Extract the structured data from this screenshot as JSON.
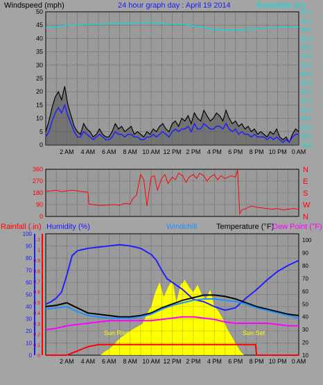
{
  "colors": {
    "background": "#a4a4a4",
    "plot_bg": "#9a9a9a",
    "grid": "#111111",
    "axis_red": "#ff0000",
    "axis_blue": "#1a1aff",
    "cyan": "#00e0e0",
    "black": "#000000",
    "windchill": "#1e90ff",
    "dewpoint": "#ff00ff",
    "humidity": "#2020ff",
    "radiation": "#ffff00"
  },
  "chart_data": [
    {
      "type": "line",
      "panel": "wind",
      "title": "24 hour graph day : April 19 2014",
      "left_axis_title": "Windspeed (mph)",
      "right_axis_title": "Barometer (in)",
      "x_ticks": [
        "2 AM",
        "4 AM",
        "6 AM",
        "8 AM",
        "10 AM",
        "12 PM",
        "2 PM",
        "4 PM",
        "6 PM",
        "8 PM",
        "10 PM",
        "0 AM"
      ],
      "x_range": [
        0,
        24
      ],
      "ylim_left": [
        0,
        50
      ],
      "y_ticks_left": [
        "0",
        "5",
        "10",
        "15",
        "20",
        "25",
        "30",
        "35",
        "40",
        "45",
        "50"
      ],
      "ylim_right": [
        28.8,
        30.3
      ],
      "y_ticks_right": [
        "28.8",
        "28.9",
        "29.0",
        "29.1",
        "29.2",
        "29.3",
        "29.4",
        "29.5",
        "29.6",
        "29.7",
        "29.8",
        "29.9",
        "30.0",
        "30.1",
        "30.2",
        "30.3"
      ],
      "series": [
        {
          "role": "gust",
          "color": "#000000",
          "x": [
            0,
            0.3,
            0.6,
            0.9,
            1.2,
            1.5,
            1.8,
            2.1,
            2.4,
            2.7,
            3.0,
            3.3,
            3.6,
            3.9,
            4.2,
            4.5,
            4.8,
            5.1,
            5.4,
            5.7,
            6.0,
            6.3,
            6.6,
            6.9,
            7.2,
            7.5,
            7.8,
            8.1,
            8.4,
            8.7,
            9.0,
            9.3,
            9.6,
            9.9,
            10.2,
            10.5,
            10.8,
            11.1,
            11.4,
            11.7,
            12.0,
            12.3,
            12.6,
            12.9,
            13.2,
            13.5,
            13.8,
            14.1,
            14.4,
            14.7,
            15.0,
            15.3,
            15.6,
            15.9,
            16.2,
            16.5,
            16.8,
            17.1,
            17.4,
            17.7,
            18.0,
            18.3,
            18.6,
            18.9,
            19.2,
            19.5,
            19.8,
            20.1,
            20.4,
            20.7,
            21.0,
            21.3,
            21.6,
            21.9,
            22.2,
            22.5,
            22.8,
            23.1,
            23.4,
            23.7,
            24.0
          ],
          "values": [
            5,
            9,
            14,
            18,
            20,
            17,
            22,
            15,
            11,
            7,
            5,
            4,
            8,
            6,
            5,
            3,
            4,
            6,
            4,
            3,
            3,
            5,
            8,
            6,
            7,
            5,
            6,
            7,
            4,
            5,
            4,
            3,
            5,
            4,
            6,
            5,
            7,
            8,
            6,
            5,
            8,
            9,
            7,
            10,
            9,
            11,
            8,
            12,
            10,
            9,
            13,
            11,
            9,
            10,
            12,
            11,
            9,
            13,
            10,
            8,
            9,
            7,
            8,
            6,
            7,
            5,
            6,
            4,
            5,
            4,
            3,
            5,
            4,
            6,
            3,
            2,
            3,
            1,
            4,
            6,
            5
          ]
        },
        {
          "role": "speed",
          "color": "#2020ff",
          "x": [
            0,
            0.3,
            0.6,
            0.9,
            1.2,
            1.5,
            1.8,
            2.1,
            2.4,
            2.7,
            3.0,
            3.3,
            3.6,
            3.9,
            4.2,
            4.5,
            4.8,
            5.1,
            5.4,
            5.7,
            6.0,
            6.3,
            6.6,
            6.9,
            7.2,
            7.5,
            7.8,
            8.1,
            8.4,
            8.7,
            9.0,
            9.3,
            9.6,
            9.9,
            10.2,
            10.5,
            10.8,
            11.1,
            11.4,
            11.7,
            12.0,
            12.3,
            12.6,
            12.9,
            13.2,
            13.5,
            13.8,
            14.1,
            14.4,
            14.7,
            15.0,
            15.3,
            15.6,
            15.9,
            16.2,
            16.5,
            16.8,
            17.1,
            17.4,
            17.7,
            18.0,
            18.3,
            18.6,
            18.9,
            19.2,
            19.5,
            19.8,
            20.1,
            20.4,
            20.7,
            21.0,
            21.3,
            21.6,
            21.9,
            22.2,
            22.5,
            22.8,
            23.1,
            23.4,
            23.7,
            24.0
          ],
          "values": [
            3,
            5,
            9,
            12,
            14,
            12,
            15,
            11,
            8,
            5,
            3,
            3,
            5,
            4,
            3,
            2,
            3,
            4,
            3,
            2,
            2,
            3,
            5,
            4,
            4,
            3,
            4,
            4,
            3,
            3,
            2,
            2,
            3,
            3,
            4,
            3,
            4,
            5,
            4,
            3,
            5,
            6,
            5,
            6,
            6,
            7,
            5,
            8,
            6,
            6,
            8,
            7,
            6,
            6,
            7,
            7,
            6,
            8,
            6,
            5,
            6,
            4,
            5,
            4,
            4,
            3,
            4,
            3,
            3,
            3,
            2,
            3,
            2,
            3,
            2,
            1,
            2,
            1,
            3,
            4,
            4
          ]
        },
        {
          "role": "barometer",
          "color": "#00e0e0",
          "x": [
            0,
            1,
            2,
            3,
            4,
            5,
            6,
            7,
            8,
            9,
            10,
            11,
            12,
            13,
            14,
            15,
            16,
            17,
            18,
            19,
            20,
            21,
            22,
            23,
            24
          ],
          "values": [
            30.12,
            30.13,
            30.15,
            30.15,
            30.16,
            30.16,
            30.17,
            30.17,
            30.17,
            30.18,
            30.18,
            30.17,
            30.16,
            30.16,
            30.14,
            30.12,
            30.1,
            30.09,
            30.1,
            30.1,
            30.11,
            30.12,
            30.12,
            30.13,
            30.13
          ]
        }
      ]
    },
    {
      "type": "line",
      "panel": "direction",
      "x_range": [
        0,
        24
      ],
      "ylim": [
        0,
        360
      ],
      "y_ticks": [
        "0",
        "90",
        "180",
        "270",
        "360"
      ],
      "right_labels": [
        "N",
        "W",
        "S",
        "E",
        "N"
      ],
      "series": [
        {
          "role": "wind_direction",
          "color": "#ff0000",
          "x": [
            0,
            0.5,
            1,
            1.5,
            2,
            2.5,
            3,
            3.5,
            4,
            4.1,
            4.5,
            5,
            5.5,
            6,
            6.5,
            7,
            7.5,
            8,
            8.3,
            8.6,
            9,
            9.3,
            9.6,
            10,
            10.3,
            10.6,
            11,
            11.3,
            11.6,
            12,
            12.3,
            12.6,
            13,
            13.3,
            13.6,
            14,
            14.3,
            14.6,
            15,
            15.3,
            15.6,
            16,
            16.3,
            16.6,
            17,
            17.3,
            17.6,
            18,
            18.2,
            18.4,
            18.6,
            19,
            19.5,
            20,
            20.5,
            21,
            21.5,
            22,
            22.5,
            23,
            23.5,
            24
          ],
          "values": [
            190,
            195,
            200,
            190,
            195,
            200,
            195,
            190,
            185,
            95,
            90,
            85,
            85,
            88,
            90,
            85,
            100,
            95,
            140,
            160,
            320,
            280,
            80,
            300,
            310,
            200,
            290,
            320,
            250,
            300,
            280,
            330,
            310,
            260,
            300,
            320,
            290,
            330,
            310,
            270,
            300,
            320,
            280,
            310,
            290,
            300,
            310,
            300,
            355,
            20,
            50,
            60,
            80,
            70,
            65,
            60,
            55,
            60,
            50,
            55,
            60,
            55
          ]
        }
      ]
    },
    {
      "type": "line",
      "panel": "temperature",
      "legend": [
        "Rainfall (.in)",
        "Humidity (%)",
        "Windchill",
        "Temperature (°F)",
        "Dew Point (°F)"
      ],
      "x_range": [
        0,
        24
      ],
      "humidity_ticks": [
        "0",
        "10",
        "20",
        "30",
        "40",
        "50",
        "60",
        "70",
        "80",
        "90",
        "100"
      ],
      "rain_ticks": [
        "0",
        "0.1",
        "0.2",
        "0.3",
        "0.4",
        "0.5",
        "0.6",
        "0.7",
        "0.8",
        "0.9",
        "1",
        "1.1"
      ],
      "temp_ticks": [
        "10",
        "20",
        "30",
        "40",
        "50",
        "60",
        "70",
        "80",
        "90",
        "100"
      ],
      "ylim_temp": [
        10,
        105
      ],
      "ylim_humidity": [
        0,
        100
      ],
      "ylim_rain": [
        0,
        1.15
      ],
      "annotations": [
        "Sun Rise",
        "Sun Set"
      ],
      "series": [
        {
          "role": "humidity",
          "color": "#2020ff",
          "x": [
            0,
            0.5,
            1,
            1.5,
            2,
            2.5,
            3,
            3.5,
            4,
            5,
            6,
            7,
            8,
            9,
            10,
            10.5,
            11,
            11.5,
            12,
            12.5,
            13,
            13.5,
            14,
            15,
            16,
            17,
            18,
            19,
            20,
            21,
            22,
            23,
            24
          ],
          "values": [
            42,
            44,
            47,
            52,
            66,
            82,
            86,
            87,
            88,
            89,
            90,
            91,
            90,
            88,
            83,
            78,
            70,
            63,
            60,
            57,
            54,
            50,
            46,
            44,
            40,
            37,
            39,
            47,
            54,
            62,
            69,
            74,
            78
          ]
        },
        {
          "role": "temperature",
          "color": "#000000",
          "x": [
            0,
            1,
            2,
            3,
            4,
            5,
            6,
            7,
            8,
            9,
            10,
            11,
            12,
            13,
            14,
            15,
            16,
            17,
            18,
            19,
            20,
            21,
            22,
            23,
            24
          ],
          "values": [
            48,
            49,
            51,
            47,
            43,
            42,
            41,
            40,
            40,
            41,
            43,
            47,
            50,
            53,
            55,
            57,
            57,
            56,
            54,
            51,
            48,
            46,
            44,
            42,
            41
          ]
        },
        {
          "role": "windchill",
          "color": "#1e90ff",
          "x": [
            0,
            1,
            2,
            3,
            4,
            5,
            6,
            7,
            8,
            9,
            10,
            11,
            12,
            13,
            14,
            15,
            16,
            17,
            18,
            19,
            20,
            21,
            22,
            23,
            24
          ],
          "values": [
            46,
            47,
            48,
            44,
            41,
            40,
            39,
            39,
            39,
            40,
            42,
            46,
            49,
            51,
            53,
            54,
            54,
            53,
            52,
            50,
            47,
            45,
            43,
            41,
            39
          ]
        },
        {
          "role": "dewpoint",
          "color": "#ff00ff",
          "x": [
            0,
            1,
            2,
            3,
            4,
            5,
            6,
            7,
            8,
            9,
            10,
            11,
            12,
            13,
            14,
            15,
            16,
            17,
            18,
            19,
            20,
            21,
            22,
            23,
            24
          ],
          "values": [
            30,
            31,
            33,
            34,
            35,
            36,
            37,
            37,
            37,
            37,
            37,
            38,
            39,
            40,
            40,
            39,
            38,
            36,
            35,
            35,
            35,
            35,
            34,
            33,
            33
          ]
        },
        {
          "role": "rainfall",
          "color": "#ff0000",
          "x": [
            0,
            1.5,
            2.0,
            2.5,
            3.0,
            3.5,
            4.0,
            4.5,
            5.0,
            6.0,
            7.0,
            8.0,
            9.0,
            10.0,
            12.0,
            14.0,
            16.0,
            18.0,
            19.9,
            20.0,
            24.0
          ],
          "values": [
            0,
            0,
            0,
            0.02,
            0.04,
            0.06,
            0.08,
            0.09,
            0.1,
            0.1,
            0.1,
            0.1,
            0.1,
            0.1,
            0.1,
            0.1,
            0.1,
            0.1,
            0.1,
            0,
            0
          ]
        },
        {
          "role": "solar_radiation",
          "color": "#ffff00",
          "x": [
            5.2,
            5.6,
            6.0,
            6.4,
            6.8,
            7.2,
            7.6,
            8.0,
            8.4,
            8.8,
            9.2,
            9.6,
            10.0,
            10.4,
            10.8,
            11.2,
            11.6,
            12.0,
            12.4,
            12.8,
            13.2,
            13.6,
            14.0,
            14.4,
            14.8,
            15.2,
            15.6,
            16.0,
            16.4,
            16.8,
            17.2,
            17.6,
            18.0,
            18.4,
            18.8
          ],
          "values": [
            0,
            3,
            5,
            8,
            12,
            15,
            17,
            20,
            22,
            24,
            26,
            34,
            40,
            52,
            60,
            48,
            56,
            62,
            44,
            58,
            62,
            56,
            52,
            58,
            50,
            46,
            54,
            40,
            36,
            30,
            22,
            16,
            10,
            4,
            0
          ]
        }
      ]
    }
  ]
}
